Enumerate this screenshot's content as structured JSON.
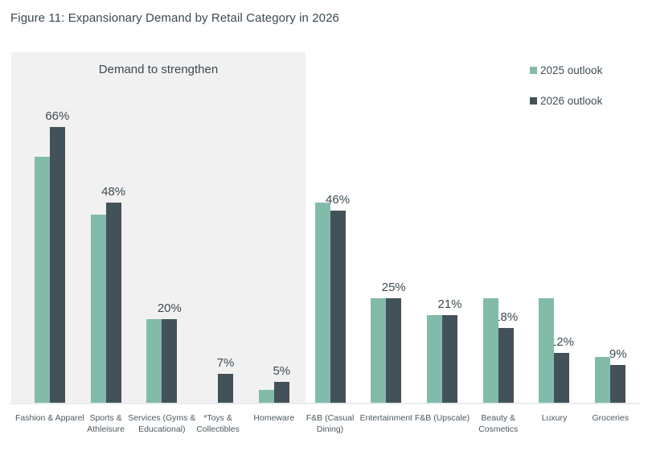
{
  "figure": {
    "title": "Figure 11: Expansionary Demand by Retail Category in 2026"
  },
  "annotation": {
    "box_label": "Demand to strengthen"
  },
  "legend": {
    "items": [
      {
        "label": "2025 outlook",
        "color": "#82bbaa"
      },
      {
        "label": "2026 outlook",
        "color": "#43525a"
      }
    ]
  },
  "colors": {
    "series_2025": "#82bbaa",
    "series_2026": "#43525a",
    "annotation_box_bg": "#f1f1f1",
    "text_dark": "#3c4b53",
    "axis_label": "#4c585f",
    "axis_line": "#e8edee"
  },
  "chart_data": {
    "type": "bar",
    "title": "Figure 11: Expansionary Demand by Retail Category in 2026",
    "categories": [
      "Fashion & Apparel",
      "Sports & Athleisure",
      "Services (Gyms & Educational)",
      "*Toys & Collectibles",
      "Homeware",
      "F&B (Casual Dining)",
      "Entertainment",
      "F&B (Upscale)",
      "Beauty & Cosmetics",
      "Luxury",
      "Groceries"
    ],
    "series": [
      {
        "name": "2025 outlook",
        "color": "#82bbaa",
        "values": [
          59,
          45,
          20,
          0,
          3,
          48,
          25,
          21,
          25,
          25,
          11
        ]
      },
      {
        "name": "2026 outlook",
        "color": "#43525a",
        "values": [
          66,
          48,
          20,
          7,
          5,
          46,
          25,
          21,
          18,
          12,
          9
        ]
      }
    ],
    "data_labels": [
      "66%",
      "48%",
      "20%",
      "7%",
      "5%",
      "46%",
      "25%",
      "21%",
      "18%",
      "12%",
      "9%"
    ],
    "data_labels_on_series": "2026 outlook",
    "ylabel": "",
    "xlabel": "",
    "ylim": [
      0,
      84
    ],
    "y_axis_visible": false,
    "grid": false,
    "legend_position": "top-right",
    "annotation_box": {
      "label": "Demand to strengthen",
      "covers_categories": [
        "Fashion & Apparel",
        "Sports & Athleisure",
        "Services (Gyms & Educational)",
        "*Toys & Collectibles",
        "Homeware"
      ]
    }
  }
}
